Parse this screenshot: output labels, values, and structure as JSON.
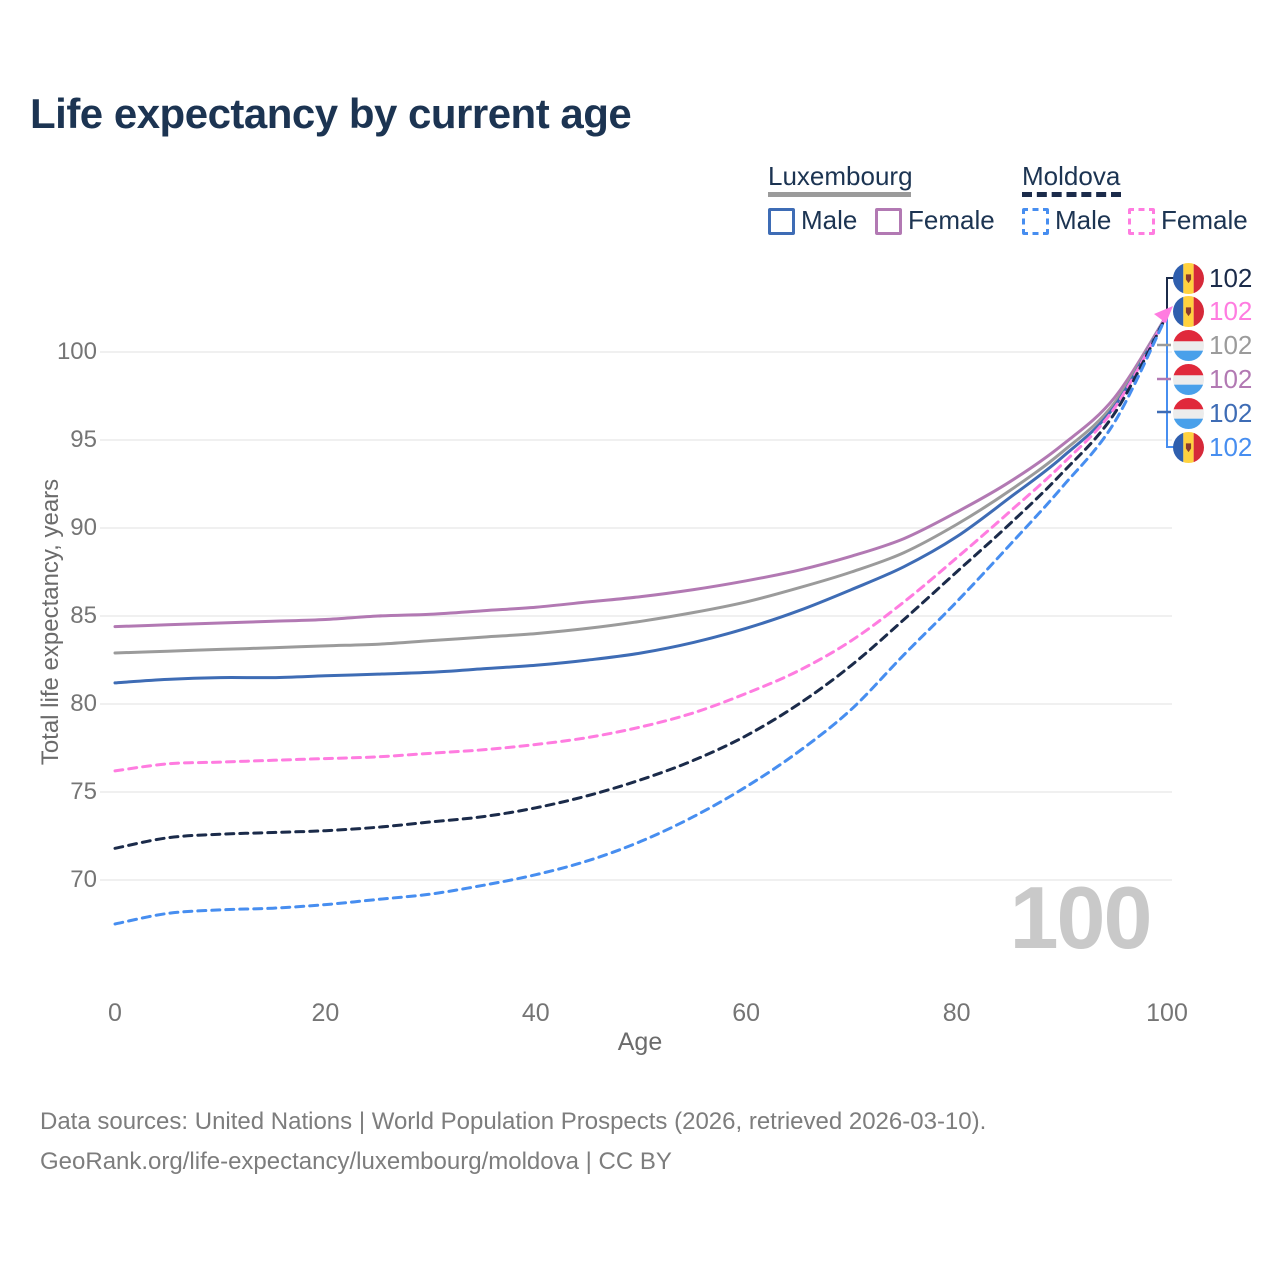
{
  "title": "Life expectancy by current age",
  "watermark": "100",
  "footer": {
    "line1": "Data sources: United Nations | World Population Prospects (2026, retrieved 2026-03-10).",
    "line2": "GeoRank.org/life-expectancy/luxembourg/moldova | CC BY"
  },
  "legend": {
    "groups": [
      {
        "label": "Luxembourg",
        "line_style": "solid",
        "underline_color": "#9b9b9b",
        "items": [
          {
            "label": "Male",
            "color": "#3e6cb5"
          },
          {
            "label": "Female",
            "color": "#b279b3"
          }
        ]
      },
      {
        "label": "Moldova",
        "line_style": "dashed",
        "underline_color": "#1b2b4a",
        "items": [
          {
            "label": "Male",
            "color": "#478ef0"
          },
          {
            "label": "Female",
            "color": "#ff7ce0"
          }
        ]
      }
    ]
  },
  "chart_data": {
    "type": "line",
    "title": "Life expectancy by current age",
    "xlabel": "Age",
    "ylabel": "Total life expectancy, years",
    "xlim": [
      0,
      100
    ],
    "ylim": [
      70,
      100
    ],
    "x_ticks": [
      0,
      20,
      40,
      60,
      80,
      100
    ],
    "y_ticks": [
      70,
      75,
      80,
      85,
      90,
      95,
      100
    ],
    "grid": "horizontal",
    "legend_position": "top-right",
    "x": [
      0,
      5,
      10,
      15,
      20,
      25,
      30,
      35,
      40,
      45,
      50,
      55,
      60,
      65,
      70,
      75,
      80,
      85,
      90,
      95,
      100
    ],
    "series": [
      {
        "id": "luxembourg-female",
        "name": "Luxembourg Female",
        "country": "luxembourg",
        "style": "solid",
        "color": "#b279b3",
        "end_label": "102",
        "values": [
          84.4,
          84.5,
          84.6,
          84.7,
          84.8,
          85.0,
          85.1,
          85.3,
          85.5,
          85.8,
          86.1,
          86.5,
          87.0,
          87.6,
          88.4,
          89.4,
          90.9,
          92.6,
          94.7,
          97.4,
          102.1
        ]
      },
      {
        "id": "luxembourg-both",
        "name": "Luxembourg (both sexes)",
        "country": "luxembourg",
        "style": "solid",
        "color": "#9b9b9b",
        "end_label": "102",
        "values": [
          82.9,
          83.0,
          83.1,
          83.2,
          83.3,
          83.4,
          83.6,
          83.8,
          84.0,
          84.3,
          84.7,
          85.2,
          85.8,
          86.6,
          87.5,
          88.6,
          90.2,
          92.1,
          94.3,
          97.1,
          102.1
        ]
      },
      {
        "id": "luxembourg-male",
        "name": "Luxembourg Male",
        "country": "luxembourg",
        "style": "solid",
        "color": "#3e6cb5",
        "end_label": "102",
        "values": [
          81.2,
          81.4,
          81.5,
          81.5,
          81.6,
          81.7,
          81.8,
          82.0,
          82.2,
          82.5,
          82.9,
          83.5,
          84.3,
          85.3,
          86.5,
          87.8,
          89.5,
          91.7,
          94.0,
          96.9,
          102.1
        ]
      },
      {
        "id": "moldova-female",
        "name": "Moldova Female",
        "country": "moldova",
        "style": "dashed",
        "color": "#ff7ce0",
        "end_label": "102",
        "values": [
          76.2,
          76.6,
          76.7,
          76.8,
          76.9,
          77.0,
          77.2,
          77.4,
          77.7,
          78.1,
          78.7,
          79.5,
          80.6,
          81.9,
          83.6,
          85.8,
          88.3,
          90.9,
          93.6,
          96.8,
          102.1
        ]
      },
      {
        "id": "moldova-both",
        "name": "Moldova (both sexes)",
        "country": "moldova",
        "style": "dashed",
        "color": "#1b2b4a",
        "end_label": "102",
        "values": [
          71.8,
          72.4,
          72.6,
          72.7,
          72.8,
          73.0,
          73.3,
          73.6,
          74.1,
          74.8,
          75.7,
          76.8,
          78.2,
          80.0,
          82.2,
          84.8,
          87.5,
          90.2,
          93.1,
          96.5,
          102.1
        ]
      },
      {
        "id": "moldova-male",
        "name": "Moldova Male",
        "country": "moldova",
        "style": "dashed",
        "color": "#478ef0",
        "end_label": "102",
        "values": [
          67.5,
          68.1,
          68.3,
          68.4,
          68.6,
          68.9,
          69.2,
          69.7,
          70.3,
          71.1,
          72.2,
          73.6,
          75.3,
          77.3,
          79.7,
          82.8,
          85.8,
          89.0,
          92.3,
          96.0,
          102.1
        ]
      }
    ],
    "end_label_order": [
      "moldova-both",
      "moldova-female",
      "luxembourg-both",
      "luxembourg-female",
      "luxembourg-male",
      "moldova-male"
    ]
  }
}
